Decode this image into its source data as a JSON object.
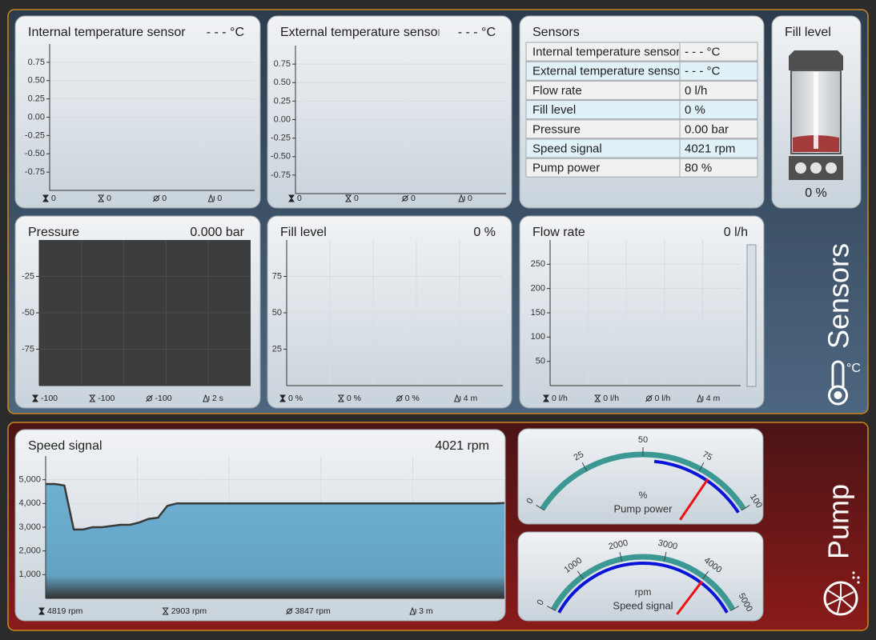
{
  "panels": {
    "sensors": "Sensors",
    "pump": "Pump",
    "temperature_unit": "°C"
  },
  "chart_data": [
    {
      "type": "line",
      "title": "Internal temperature sensor",
      "value": "- - - °C",
      "ylim": [
        -1,
        1
      ],
      "yticks": [
        0.75,
        {
          "value": 0.5,
          "label": "0.50"
        },
        0.25,
        {
          "value": 0,
          "label": "0.00"
        },
        -0.25,
        {
          "value": -0.5,
          "label": "-0.50"
        },
        -0.75
      ],
      "grid": "y",
      "footer": [
        "0",
        "0",
        "0",
        "0"
      ]
    },
    {
      "type": "line",
      "title": "External temperature sensor",
      "value": "- - - °C",
      "ylim": [
        -1,
        1
      ],
      "yticks": [
        0.75,
        {
          "value": 0.5,
          "label": "0.50"
        },
        0.25,
        {
          "value": 0,
          "label": "0.00"
        },
        -0.25,
        {
          "value": -0.5,
          "label": "-0.50"
        },
        -0.75
      ],
      "grid": "y",
      "footer": [
        "0",
        "0",
        "0",
        "0"
      ]
    },
    {
      "type": "line",
      "title": "Pressure",
      "value": "0.000 bar",
      "ylim": [
        -100,
        0
      ],
      "yticks": [
        -25,
        -50,
        -75
      ],
      "grid": "both",
      "plot_background": "#3b3d3e",
      "footer": [
        "-100",
        "-100",
        "-100",
        "2 s"
      ]
    },
    {
      "type": "line",
      "title": "Fill level",
      "value": "0 %",
      "ylim": [
        0,
        100
      ],
      "yticks": [
        75,
        50,
        25
      ],
      "grid": "both",
      "footer": [
        "0 %",
        "0 %",
        "0 %",
        "4 m"
      ]
    },
    {
      "type": "line",
      "title": "Flow rate",
      "value": "0 l/h",
      "ylim": [
        0,
        300
      ],
      "yticks": [
        250,
        200,
        150,
        100,
        50
      ],
      "grid": "both",
      "footer": [
        "0 l/h",
        "0 l/h",
        "0 l/h",
        "4 m"
      ]
    },
    {
      "type": "area",
      "title": "Speed signal",
      "value": "4021 rpm",
      "ylim": [
        0,
        6000
      ],
      "yticks": [
        {
          "value": 5000,
          "label": "5,000"
        },
        {
          "value": 4000,
          "label": "4,000"
        },
        {
          "value": 3000,
          "label": "3,000"
        },
        {
          "value": 2000,
          "label": "2,000"
        },
        {
          "value": 1000,
          "label": "1,000"
        }
      ],
      "grid": "both",
      "color": "#6aabcd",
      "values": [
        4819,
        4819,
        4760,
        2903,
        2903,
        3000,
        3000,
        3050,
        3100,
        3100,
        3200,
        3350,
        3400,
        3900,
        4000,
        4000,
        4000,
        4000,
        4000,
        4000,
        4000,
        4000,
        4000,
        4000,
        4000,
        4000,
        4000,
        4000,
        4000,
        4000,
        4000,
        4000,
        4000,
        4000,
        4000,
        4000,
        4000,
        4000,
        4000,
        4000,
        4000,
        4000,
        4000,
        4000,
        4000,
        4000,
        4000,
        4000,
        4000,
        4021
      ],
      "footer": [
        "4819 rpm",
        "2903 rpm",
        "3847 rpm",
        "3 m"
      ]
    }
  ],
  "sensor_table": {
    "title": "Sensors",
    "rows": [
      {
        "label": "Internal temperature sensor",
        "value": "- - - °C"
      },
      {
        "label": "External temperature sensor",
        "value": "- - - °C"
      },
      {
        "label": "Flow rate",
        "value": "0 l/h"
      },
      {
        "label": "Fill level",
        "value": "0 %"
      },
      {
        "label": "Pressure",
        "value": "0.00 bar"
      },
      {
        "label": "Speed signal",
        "value": "4021 rpm"
      },
      {
        "label": "Pump power",
        "value": "80 %"
      }
    ]
  },
  "fill_widget": {
    "title": "Fill level",
    "value": "0 %"
  },
  "gauges": [
    {
      "unit": "%",
      "label": "Pump power",
      "lim": [
        0,
        100
      ],
      "ticks": [
        0,
        25,
        50,
        75,
        100
      ],
      "value": 80,
      "band": [
        55,
        100
      ]
    },
    {
      "unit": "rpm",
      "label": "Speed signal",
      "lim": [
        0,
        5000
      ],
      "ticks": [
        0,
        1000,
        2000,
        3000,
        4000,
        5000
      ],
      "value": 4021,
      "band": [
        0,
        5000
      ]
    }
  ]
}
